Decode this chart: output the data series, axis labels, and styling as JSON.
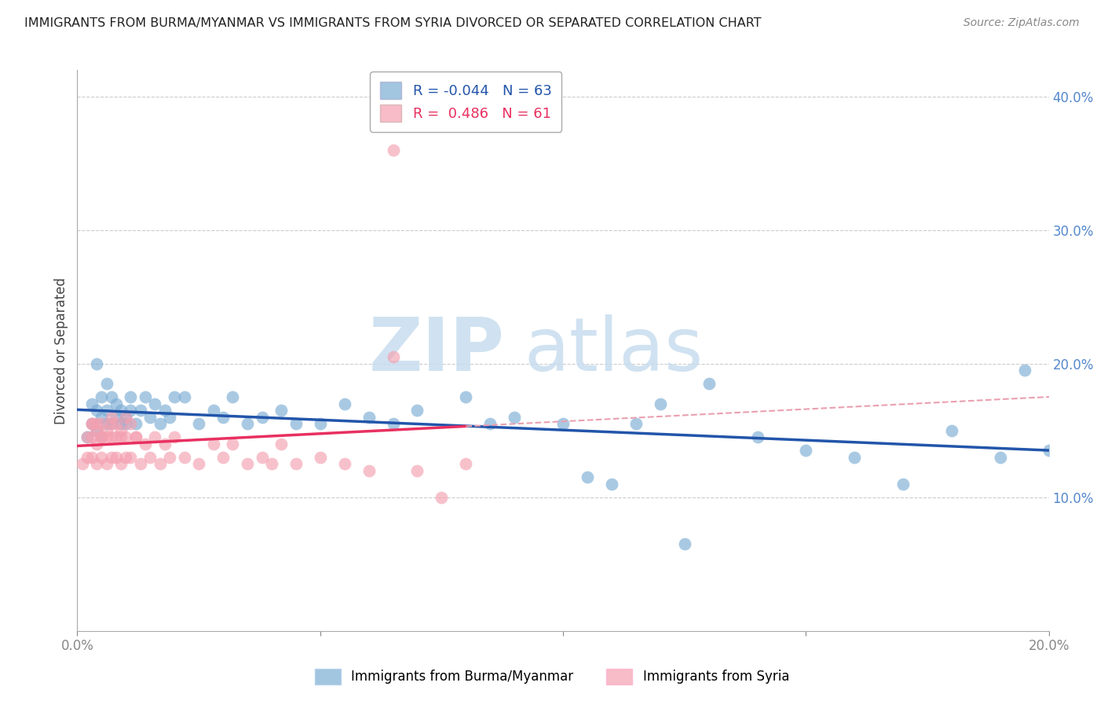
{
  "title": "IMMIGRANTS FROM BURMA/MYANMAR VS IMMIGRANTS FROM SYRIA DIVORCED OR SEPARATED CORRELATION CHART",
  "source": "Source: ZipAtlas.com",
  "ylabel_label": "Divorced or Separated",
  "legend_label1": "Immigrants from Burma/Myanmar",
  "legend_label2": "Immigrants from Syria",
  "R_blue": -0.044,
  "N_blue": 63,
  "R_pink": 0.486,
  "N_pink": 61,
  "xlim": [
    0.0,
    0.2
  ],
  "ylim": [
    0.0,
    0.42
  ],
  "xticks": [
    0.0,
    0.05,
    0.1,
    0.15,
    0.2
  ],
  "yticks": [
    0.1,
    0.2,
    0.3,
    0.4
  ],
  "color_blue": "#7BADD4",
  "color_pink": "#F4A0B0",
  "color_blue_line": "#2255AA",
  "color_pink_line": "#E83060",
  "color_pink_dash": "#EAA0B0",
  "watermark_zip": "ZIP",
  "watermark_atlas": "atlas",
  "blue_x": [
    0.002,
    0.003,
    0.003,
    0.004,
    0.004,
    0.005,
    0.005,
    0.005,
    0.006,
    0.006,
    0.007,
    0.007,
    0.008,
    0.008,
    0.009,
    0.009,
    0.01,
    0.01,
    0.011,
    0.011,
    0.012,
    0.013,
    0.014,
    0.015,
    0.016,
    0.017,
    0.018,
    0.019,
    0.02,
    0.022,
    0.025,
    0.028,
    0.03,
    0.032,
    0.035,
    0.038,
    0.042,
    0.045,
    0.05,
    0.055,
    0.06,
    0.065,
    0.07,
    0.08,
    0.085,
    0.09,
    0.1,
    0.105,
    0.11,
    0.115,
    0.12,
    0.13,
    0.14,
    0.15,
    0.16,
    0.17,
    0.18,
    0.19,
    0.195,
    0.2,
    0.004,
    0.006,
    0.125
  ],
  "blue_y": [
    0.145,
    0.155,
    0.17,
    0.15,
    0.165,
    0.16,
    0.145,
    0.175,
    0.155,
    0.165,
    0.155,
    0.175,
    0.16,
    0.17,
    0.155,
    0.165,
    0.16,
    0.155,
    0.165,
    0.175,
    0.155,
    0.165,
    0.175,
    0.16,
    0.17,
    0.155,
    0.165,
    0.16,
    0.175,
    0.175,
    0.155,
    0.165,
    0.16,
    0.175,
    0.155,
    0.16,
    0.165,
    0.155,
    0.155,
    0.17,
    0.16,
    0.155,
    0.165,
    0.175,
    0.155,
    0.16,
    0.155,
    0.115,
    0.11,
    0.155,
    0.17,
    0.185,
    0.145,
    0.135,
    0.13,
    0.11,
    0.15,
    0.13,
    0.195,
    0.135,
    0.2,
    0.185,
    0.065
  ],
  "pink_x": [
    0.001,
    0.002,
    0.002,
    0.003,
    0.003,
    0.003,
    0.004,
    0.004,
    0.004,
    0.005,
    0.005,
    0.005,
    0.006,
    0.006,
    0.007,
    0.007,
    0.007,
    0.008,
    0.008,
    0.009,
    0.009,
    0.01,
    0.01,
    0.011,
    0.012,
    0.013,
    0.014,
    0.015,
    0.016,
    0.017,
    0.018,
    0.019,
    0.02,
    0.022,
    0.025,
    0.028,
    0.03,
    0.032,
    0.035,
    0.038,
    0.04,
    0.042,
    0.045,
    0.05,
    0.055,
    0.06,
    0.065,
    0.07,
    0.075,
    0.08,
    0.003,
    0.004,
    0.005,
    0.006,
    0.007,
    0.008,
    0.009,
    0.01,
    0.011,
    0.012,
    0.065
  ],
  "pink_y": [
    0.125,
    0.13,
    0.145,
    0.13,
    0.145,
    0.155,
    0.125,
    0.14,
    0.155,
    0.13,
    0.145,
    0.155,
    0.125,
    0.145,
    0.13,
    0.145,
    0.155,
    0.13,
    0.145,
    0.125,
    0.145,
    0.13,
    0.145,
    0.13,
    0.145,
    0.125,
    0.14,
    0.13,
    0.145,
    0.125,
    0.14,
    0.13,
    0.145,
    0.13,
    0.125,
    0.14,
    0.13,
    0.14,
    0.125,
    0.13,
    0.125,
    0.14,
    0.125,
    0.13,
    0.125,
    0.12,
    0.205,
    0.12,
    0.1,
    0.125,
    0.155,
    0.15,
    0.145,
    0.15,
    0.16,
    0.155,
    0.15,
    0.16,
    0.155,
    0.145,
    0.36
  ]
}
